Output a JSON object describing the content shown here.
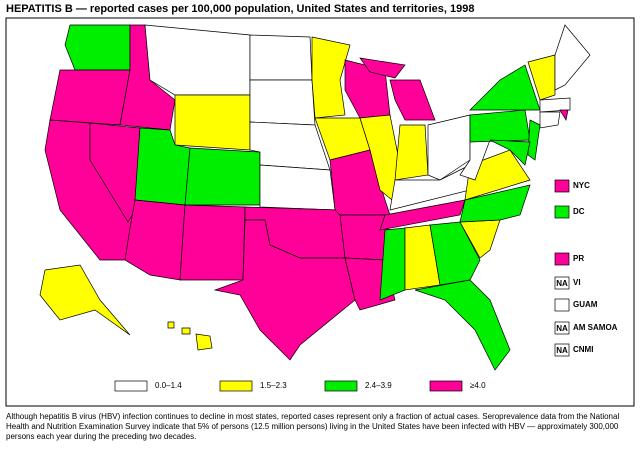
{
  "title": "HEPATITIS B — reported cases per 100,000 population, United States and territories, 1998",
  "legend": [
    {
      "label": "0.0–1.4",
      "color": "#ffffff"
    },
    {
      "label": "1.5–2.3",
      "color": "#ffff00"
    },
    {
      "label": "2.4–3.9",
      "color": "#00ee00"
    },
    {
      "label": "≥4.0",
      "color": "#ff0099"
    }
  ],
  "territories": [
    {
      "name": "NYC",
      "color": "#ff0099"
    },
    {
      "name": "DC",
      "color": "#00ee00"
    },
    {
      "name": "PR",
      "color": "#ff0099"
    },
    {
      "name": "VI",
      "badge": "NA"
    },
    {
      "name": "GUAM",
      "color": "#ffffff"
    },
    {
      "name": "AM SAMOA",
      "badge": "NA"
    },
    {
      "name": "CNMI",
      "badge": "NA"
    }
  ],
  "footnote": "Although hepatitis B virus (HBV) infection continues to decline in most states, reported cases represent only a fraction of actual cases. Seroprevalence data from the National Health and Nutrition Examination Survey indicate that 5% of persons (12.5 million persons) living in the United States have been infected with HBV — approximately 300,000 persons each year during the preceding two decades."
}
